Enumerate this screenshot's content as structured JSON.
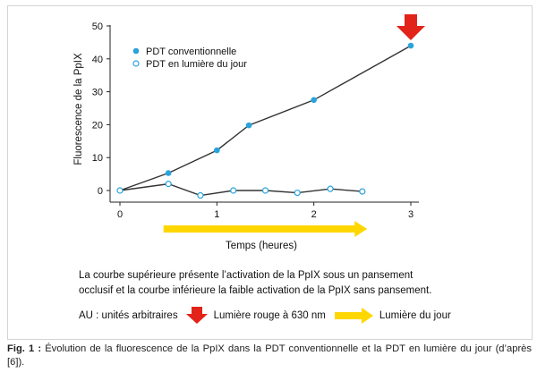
{
  "chart_data": {
    "type": "line",
    "ylabel": "Fluorescence de la PpIX",
    "xlabel": "Temps (heures)",
    "xlim": [
      0,
      3
    ],
    "ylim": [
      -2,
      50
    ],
    "x_ticks": [
      0,
      1,
      2,
      3
    ],
    "y_ticks": [
      0,
      10,
      20,
      30,
      40,
      50
    ],
    "grid": false,
    "legend_position": "top-left",
    "series": [
      {
        "name": "PDT conventionnelle",
        "marker": "filled-circle",
        "color": "#29a3dc",
        "x": [
          0,
          0.5,
          1.0,
          1.33,
          2.0,
          3.0
        ],
        "y": [
          0,
          5.3,
          12.2,
          19.8,
          27.5,
          44.0
        ]
      },
      {
        "name": "PDT en lumière du jour",
        "marker": "open-circle",
        "color": "#29a3dc",
        "x": [
          0,
          0.5,
          0.83,
          1.17,
          1.5,
          1.83,
          2.17,
          2.5
        ],
        "y": [
          0,
          2.0,
          -1.5,
          0,
          0,
          -0.7,
          0.5,
          -0.3
        ]
      }
    ],
    "annotations": {
      "red_arrow_at_x": 3,
      "daylight_arrow_from_x": 0.45,
      "daylight_arrow_to_x": 2.55
    }
  },
  "description_line1": "La courbe supérieure présente l’activation de la PpIX sous un pansement",
  "description_line2": "occlusif et la courbe inférieure la faible activation de la PpIX sans pansement.",
  "legend_bottom": {
    "au": "AU : unités arbitraires",
    "red_label": "Lumière rouge à 630 nm",
    "yellow_label": "Lumière du jour"
  },
  "caption": {
    "label": "Fig. 1 :",
    "text": "Évolution de la fluorescence de la PpIX dans la PDT conventionnelle et la PDT en lumière du jour (d’après [6])."
  },
  "colors": {
    "marker": "#29a3dc",
    "line": "#333333",
    "red_arrow": "#e2231a",
    "yellow_arrow": "#ffd700"
  }
}
